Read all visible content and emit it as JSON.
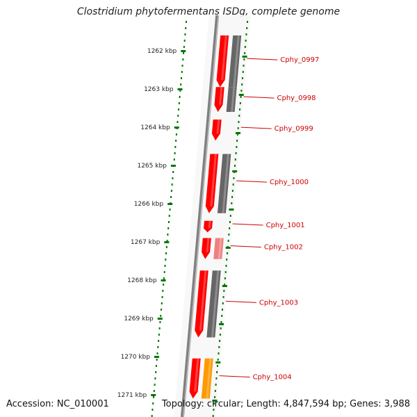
{
  "title": "Clostridium phytofermentans ISDg, complete genome",
  "footer": {
    "accession": "Accession: NC_010001",
    "summary": "Topology: circular; Length: 4,847,594 bp; Genes: 3,988"
  },
  "ruler": {
    "unit": "kbp",
    "ticks": [
      "1262 kbp",
      "1263 kbp",
      "1264 kbp",
      "1265 kbp",
      "1266 kbp",
      "1267 kbp",
      "1268 kbp",
      "1269 kbp",
      "1270 kbp",
      "1271 kbp"
    ]
  },
  "genes": [
    {
      "name": "Cphy_0997",
      "start": 1261.6,
      "end": 1262.95,
      "strand": "reverse",
      "color": "#ff0000",
      "partner": {
        "type": "gray",
        "color": "#666666",
        "start": 1261.6,
        "end": 1262.95
      }
    },
    {
      "name": "Cphy_0998",
      "start": 1262.95,
      "end": 1263.6,
      "strand": "reverse",
      "color": "#ff0000",
      "partner": {
        "type": "gray",
        "color": "#666666",
        "start": 1262.95,
        "end": 1263.6
      }
    },
    {
      "name": "Cphy_0999",
      "start": 1263.8,
      "end": 1264.35,
      "strand": "reverse",
      "color": "#ff0000"
    },
    {
      "name": "Cphy_1000",
      "start": 1264.7,
      "end": 1266.25,
      "strand": "reverse",
      "color": "#ff0000",
      "partner": {
        "type": "gray",
        "color": "#666666",
        "start": 1264.7,
        "end": 1266.25
      }
    },
    {
      "name": "Cphy_1001",
      "start": 1266.45,
      "end": 1266.75,
      "strand": "reverse",
      "color": "#ff0000"
    },
    {
      "name": "Cphy_1002",
      "start": 1266.9,
      "end": 1267.45,
      "strand": "reverse",
      "color": "#ff0000",
      "partner": {
        "type": "pink",
        "color": "#f08080",
        "start": 1266.9,
        "end": 1267.45
      }
    },
    {
      "name": "Cphy_1003",
      "start": 1267.75,
      "end": 1269.5,
      "strand": "reverse",
      "color": "#ff0000",
      "partner": {
        "type": "gray",
        "color": "#666666",
        "start": 1267.75,
        "end": 1269.5
      }
    },
    {
      "name": "Cphy_1004",
      "start": 1270.05,
      "end": 1271.1,
      "strand": "reverse",
      "color": "#ff0000",
      "partner": {
        "type": "orange",
        "color": "#ff9900",
        "start": 1270.05,
        "end": 1271.1
      }
    }
  ],
  "colors": {
    "backbone": "#808080",
    "ruler": "#007700",
    "gene": "#ff0000",
    "label": "#cc0000"
  }
}
